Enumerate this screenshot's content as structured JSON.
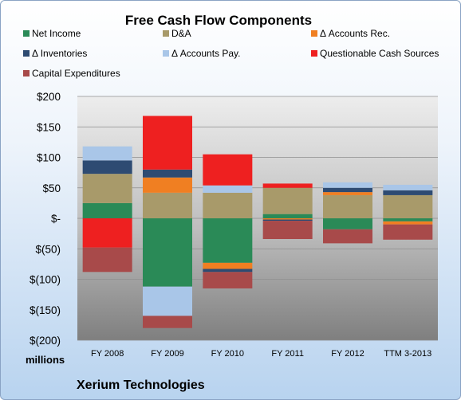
{
  "chart_data": {
    "type": "bar",
    "stacked": true,
    "title": "Free Cash Flow Components",
    "categories": [
      "FY 2008",
      "FY 2009",
      "FY 2010",
      "FY 2011",
      "FY 2012",
      "TTM 3-2013"
    ],
    "units_label": "millions",
    "company": "Xerium Technologies",
    "ylim": [
      -200,
      200
    ],
    "yticks": [
      {
        "value": 200,
        "label": "$200"
      },
      {
        "value": 150,
        "label": "$150"
      },
      {
        "value": 100,
        "label": "$100"
      },
      {
        "value": 50,
        "label": "$50"
      },
      {
        "value": 0,
        "label": "$-"
      },
      {
        "value": -50,
        "label": "$(50)"
      },
      {
        "value": -100,
        "label": "$(100)"
      },
      {
        "value": -150,
        "label": "$(150)"
      },
      {
        "value": -200,
        "label": "$(200)"
      }
    ],
    "grid": true,
    "legend_position": "top",
    "series": [
      {
        "name": "Net Income",
        "color": "#2a8a57",
        "values": [
          25,
          -112,
          -73,
          7,
          -18,
          -5
        ]
      },
      {
        "name": "D&A",
        "color": "#a89a6a",
        "values": [
          48,
          42,
          42,
          43,
          38,
          38
        ]
      },
      {
        "name": "Δ Accounts Rec.",
        "color": "#f07f22",
        "values": [
          0,
          25,
          -10,
          -2,
          5,
          -5
        ]
      },
      {
        "name": "Δ Inventories",
        "color": "#2e4b72",
        "values": [
          22,
          13,
          -5,
          -2,
          7,
          8
        ]
      },
      {
        "name": "Δ Accounts Pay.",
        "color": "#a9c6e8",
        "values": [
          23,
          -48,
          12,
          0,
          9,
          9
        ]
      },
      {
        "name": "Questionable Cash Sources",
        "color": "#ee2020",
        "values": [
          -48,
          88,
          51,
          7,
          0,
          0
        ]
      },
      {
        "name": "Capital Expenditures",
        "color": "#a84a4a",
        "values": [
          -40,
          -20,
          -27,
          -30,
          -23,
          -25
        ]
      }
    ]
  }
}
